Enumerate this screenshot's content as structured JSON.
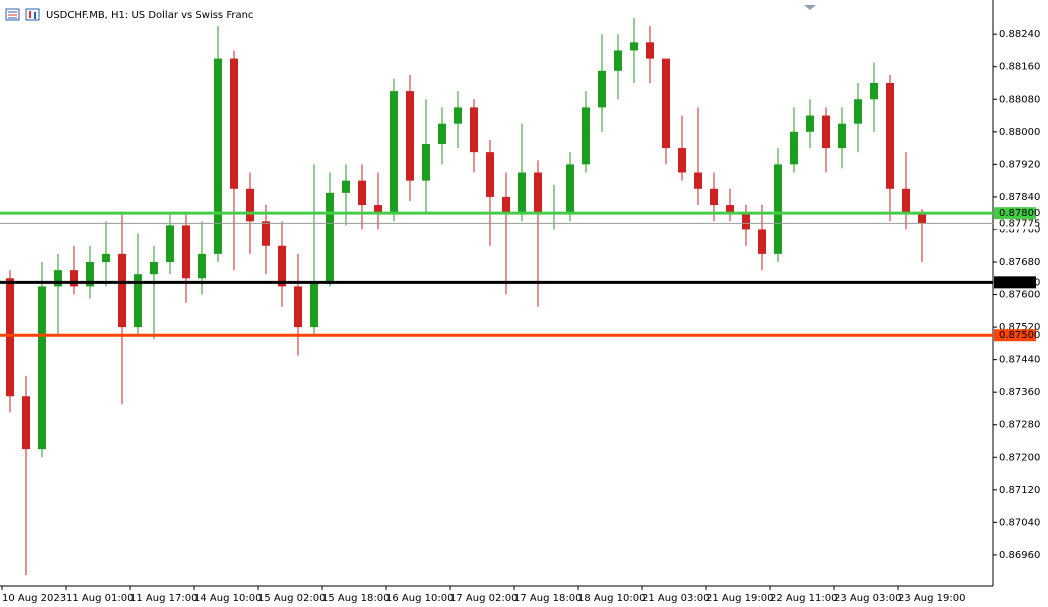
{
  "chart_data": {
    "type": "candlestick",
    "title": "USDCHF.MB, H1:  US Dollar vs Swiss Franc",
    "categories": [
      "10 Aug 2023",
      null,
      null,
      null,
      "11 Aug 01:00",
      null,
      null,
      null,
      "11 Aug 17:00",
      null,
      null,
      null,
      "14 Aug 10:00",
      null,
      null,
      null,
      "15 Aug 02:00",
      null,
      null,
      null,
      "15 Aug 18:00",
      null,
      null,
      null,
      "16 Aug 10:00",
      null,
      null,
      null,
      "17 Aug 02:00",
      null,
      null,
      null,
      "17 Aug 18:00",
      null,
      null,
      null,
      "18 Aug 10:00",
      null,
      null,
      null,
      "21 Aug 03:00",
      null,
      null,
      null,
      "21 Aug 19:00",
      null,
      null,
      null,
      "22 Aug 11:00",
      null,
      null,
      null,
      "23 Aug 03:00",
      null,
      null,
      null,
      "23 Aug 19:00",
      null
    ],
    "open": [
      0.8764,
      0.8735,
      0.8722,
      0.8762,
      0.8766,
      0.8762,
      0.8768,
      0.877,
      0.8752,
      0.8765,
      0.8768,
      0.8777,
      0.8764,
      0.877,
      0.8818,
      0.8786,
      0.8778,
      0.8772,
      0.8762,
      0.8752,
      0.8763,
      0.8785,
      0.8788,
      0.8782,
      0.878,
      0.881,
      0.8788,
      0.8797,
      0.8802,
      0.8806,
      0.8795,
      0.8784,
      0.878,
      0.879,
      0.878,
      0.878,
      0.8792,
      0.8806,
      0.8815,
      0.882,
      0.8822,
      0.8818,
      0.8796,
      0.879,
      0.8786,
      0.8782,
      0.878,
      0.8776,
      0.877,
      0.8792,
      0.88,
      0.8804,
      0.8796,
      0.8802,
      0.8808,
      0.8812,
      0.8786,
      0.878
    ],
    "high": [
      0.8766,
      0.874,
      0.8768,
      0.877,
      0.8772,
      0.8772,
      0.8778,
      0.878,
      0.8775,
      0.8772,
      0.878,
      0.878,
      0.8778,
      0.8826,
      0.882,
      0.879,
      0.8782,
      0.8778,
      0.877,
      0.8792,
      0.879,
      0.8792,
      0.8792,
      0.879,
      0.8813,
      0.8814,
      0.8808,
      0.8806,
      0.881,
      0.8808,
      0.8798,
      0.879,
      0.8802,
      0.8793,
      0.8787,
      0.8795,
      0.881,
      0.8824,
      0.8824,
      0.8828,
      0.8826,
      0.8818,
      0.8804,
      0.8806,
      0.879,
      0.8786,
      0.8782,
      0.8782,
      0.8796,
      0.8806,
      0.8808,
      0.8806,
      0.8806,
      0.8812,
      0.8817,
      0.8814,
      0.8795,
      0.8781
    ],
    "low": [
      0.8731,
      0.8691,
      0.872,
      0.875,
      0.876,
      0.8759,
      0.8762,
      0.8733,
      0.875,
      0.8749,
      0.8765,
      0.8758,
      0.876,
      0.8768,
      0.8766,
      0.877,
      0.8765,
      0.8757,
      0.8745,
      0.875,
      0.8762,
      0.8777,
      0.8776,
      0.8776,
      0.8778,
      0.8783,
      0.878,
      0.8792,
      0.8796,
      0.879,
      0.8772,
      0.876,
      0.8778,
      0.8757,
      0.8776,
      0.8778,
      0.879,
      0.88,
      0.8808,
      0.8812,
      0.8812,
      0.8792,
      0.8788,
      0.8782,
      0.8778,
      0.8778,
      0.8772,
      0.8766,
      0.8768,
      0.879,
      0.8796,
      0.879,
      0.8791,
      0.8795,
      0.88,
      0.8778,
      0.8776,
      0.8768
    ],
    "close": [
      0.8735,
      0.8722,
      0.8762,
      0.8766,
      0.8762,
      0.8768,
      0.877,
      0.8752,
      0.8765,
      0.8768,
      0.8777,
      0.8764,
      0.877,
      0.8818,
      0.8786,
      0.8778,
      0.8772,
      0.8762,
      0.8752,
      0.8763,
      0.8785,
      0.8788,
      0.8782,
      0.878,
      0.881,
      0.8788,
      0.8797,
      0.8802,
      0.8806,
      0.8795,
      0.8784,
      0.878,
      0.879,
      0.878,
      0.878,
      0.8792,
      0.8806,
      0.8815,
      0.882,
      0.8822,
      0.8818,
      0.8796,
      0.879,
      0.8786,
      0.8782,
      0.878,
      0.8776,
      0.877,
      0.8792,
      0.88,
      0.8804,
      0.8796,
      0.8802,
      0.8808,
      0.8812,
      0.8786,
      0.878,
      0.87775
    ],
    "up_color": "#1e9e1e",
    "down_color": "#cc2222",
    "ylim": [
      0.86891,
      0.88324
    ],
    "yticks": [
      {
        "value": 0.8696,
        "label": "0.86960"
      },
      {
        "value": 0.8704,
        "label": "0.87040"
      },
      {
        "value": 0.8712,
        "label": "0.87120"
      },
      {
        "value": 0.872,
        "label": "0.87200"
      },
      {
        "value": 0.8728,
        "label": "0.87280"
      },
      {
        "value": 0.8736,
        "label": "0.87360"
      },
      {
        "value": 0.8744,
        "label": "0.87440"
      },
      {
        "value": 0.8752,
        "label": "0.87520"
      },
      {
        "value": 0.876,
        "label": "0.87600"
      },
      {
        "value": 0.8768,
        "label": "0.87680"
      },
      {
        "value": 0.8776,
        "label": "0.87760"
      },
      {
        "value": 0.8784,
        "label": "0.87840"
      },
      {
        "value": 0.8792,
        "label": "0.87920"
      },
      {
        "value": 0.88,
        "label": "0.88000"
      },
      {
        "value": 0.8808,
        "label": "0.88080"
      },
      {
        "value": 0.8816,
        "label": "0.88160"
      },
      {
        "value": 0.8824,
        "label": "0.88240"
      }
    ],
    "levels": [
      {
        "value": 0.878,
        "label": "0.87800",
        "color": "#44cc44"
      },
      {
        "value": 0.8763,
        "label": "0.87630",
        "color": "#000000"
      },
      {
        "value": 0.875,
        "label": "0.87500",
        "color": "#ff4500"
      }
    ],
    "current_price": {
      "value": 0.87775,
      "label": "0.87775",
      "color": "#999999"
    }
  }
}
